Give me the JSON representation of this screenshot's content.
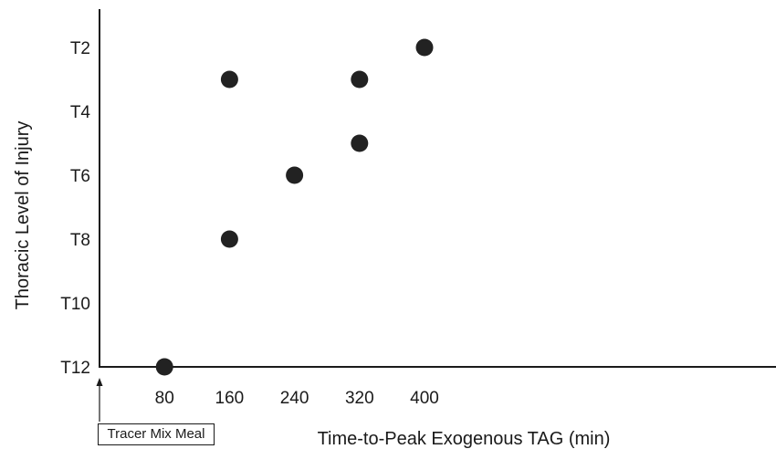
{
  "chart_data": {
    "type": "scatter",
    "xlabel": "Time-to-Peak Exogenous TAG (min)",
    "ylabel": "Thoracic Level of Injury",
    "x_ticks": [
      80,
      160,
      240,
      320,
      400
    ],
    "xlim": [
      0,
      400
    ],
    "y_tick_labels": [
      "T2",
      "T4",
      "T6",
      "T8",
      "T10",
      "T12"
    ],
    "y_tick_values": [
      2,
      4,
      6,
      8,
      10,
      12
    ],
    "ylim": [
      1,
      12
    ],
    "y_inverted": true,
    "grid": false,
    "marker_color": "#222222",
    "points": [
      {
        "x": 80,
        "y": 12
      },
      {
        "x": 160,
        "y": 3
      },
      {
        "x": 160,
        "y": 8
      },
      {
        "x": 240,
        "y": 6
      },
      {
        "x": 320,
        "y": 3
      },
      {
        "x": 320,
        "y": 5
      },
      {
        "x": 400,
        "y": 2
      }
    ],
    "annotation": {
      "label": "Tracer Mix Meal",
      "x": 0
    }
  }
}
